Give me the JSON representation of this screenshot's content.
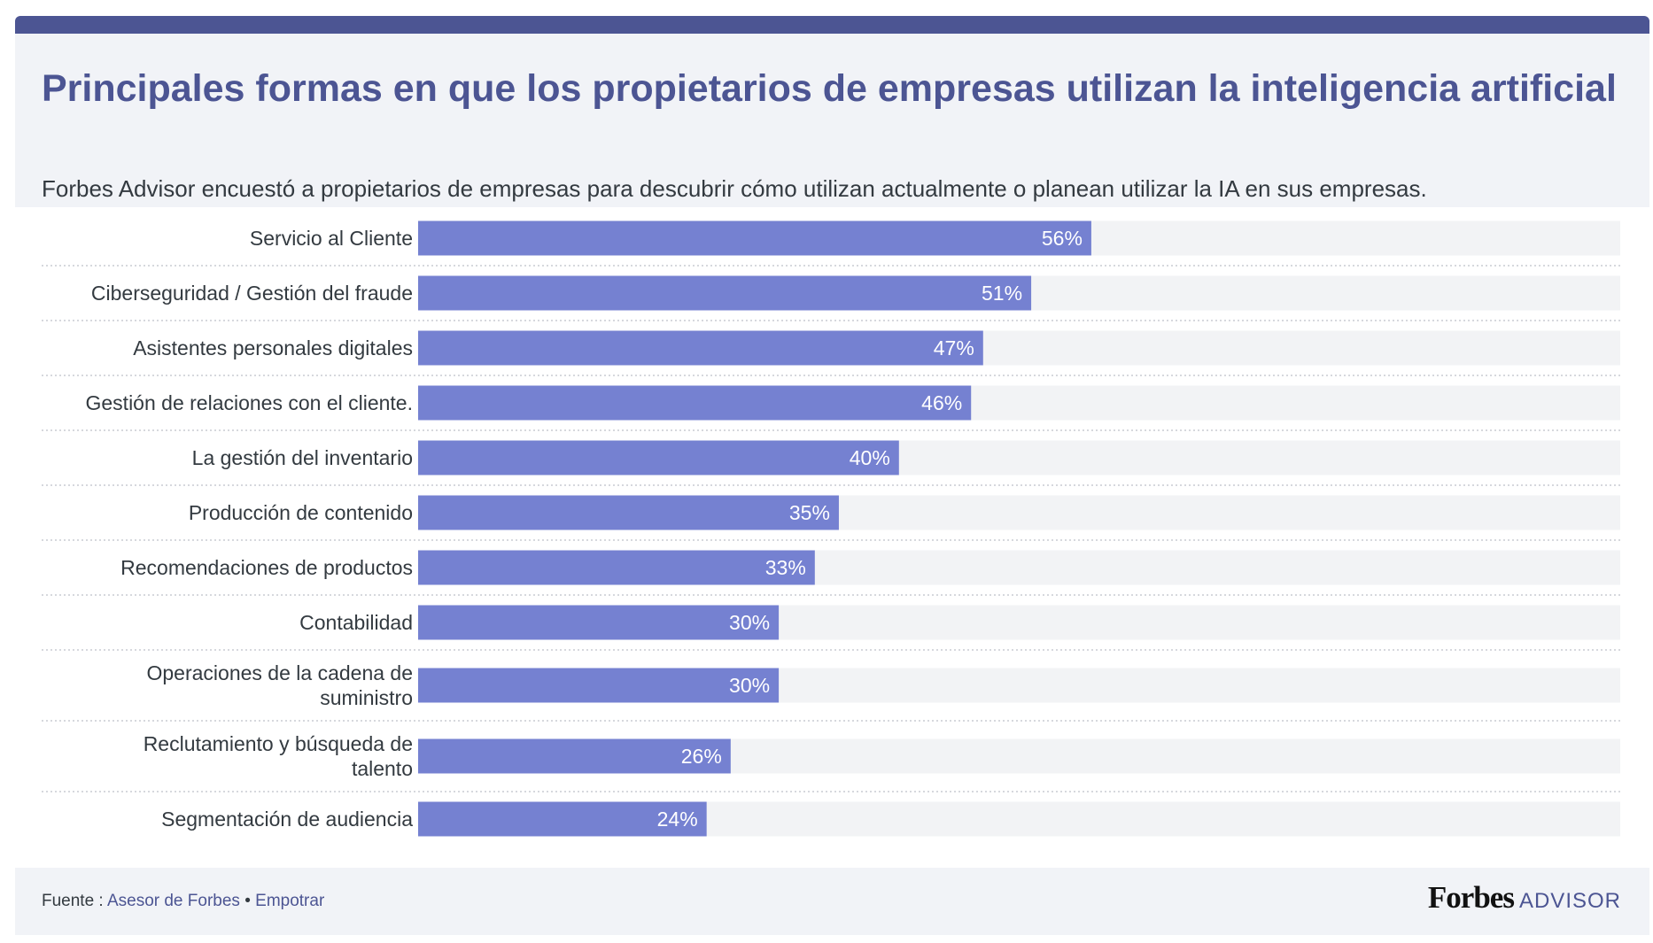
{
  "header": {
    "title": "Principales formas en que los propietarios de empresas utilizan la inteligencia artificial",
    "subtitle": "Forbes Advisor encuestó a propietarios de empresas para descubrir cómo utilizan actualmente o planean utilizar la IA en sus empresas."
  },
  "footer": {
    "source_label": "Fuente :",
    "source_link": "Asesor de Forbes",
    "separator": "•",
    "embed_link": "Empotrar",
    "brand_forbes": "Forbes",
    "brand_advisor": "ADVISOR"
  },
  "colors": {
    "bar": "#7581d1",
    "track": "#f2f3f5",
    "accent": "#4c5593",
    "label": "#333a40"
  },
  "chart_data": {
    "type": "bar",
    "orientation": "horizontal",
    "categories": [
      [
        "Servicio al Cliente"
      ],
      [
        "Ciberseguridad / Gestión del fraude"
      ],
      [
        "Asistentes personales digitales"
      ],
      [
        "Gestión de relaciones con el cliente."
      ],
      [
        "La gestión del inventario"
      ],
      [
        "Producción de contenido"
      ],
      [
        "Recomendaciones de productos"
      ],
      [
        "Contabilidad"
      ],
      [
        "Operaciones de la cadena de",
        "suministro"
      ],
      [
        "Reclutamiento y búsqueda de",
        "talento"
      ],
      [
        "Segmentación de audiencia"
      ]
    ],
    "values": [
      56,
      51,
      47,
      46,
      40,
      35,
      33,
      30,
      30,
      26,
      24
    ],
    "value_labels": [
      "56%",
      "51%",
      "47%",
      "46%",
      "40%",
      "35%",
      "33%",
      "30%",
      "30%",
      "26%",
      "24%"
    ],
    "xlim": [
      0,
      100
    ],
    "unit": "%"
  }
}
